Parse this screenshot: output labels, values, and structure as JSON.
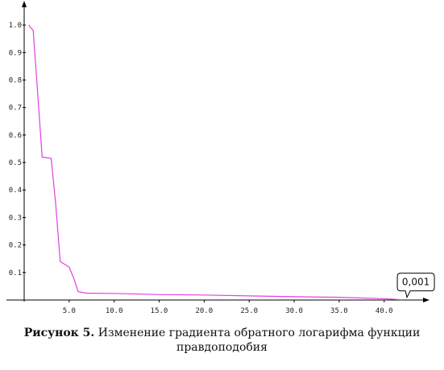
{
  "chart_data": {
    "type": "line",
    "x_tick_labels": [
      "5.0",
      "10.0",
      "15.0",
      "20.0",
      "25.0",
      "30.0",
      "35.0",
      "40.0"
    ],
    "y_tick_labels": [
      "0.1",
      "0.2",
      "0.3",
      "0.4",
      "0.5",
      "0.6",
      "0.7",
      "0.8",
      "0.9",
      "1.0"
    ],
    "xlim": [
      0,
      44.5
    ],
    "ylim": [
      0,
      1.05
    ],
    "series": [
      {
        "color": "#e040e0",
        "x": [
          0.5,
          1.0,
          1.5,
          2.0,
          3.0,
          3.5,
          4.0,
          4.5,
          5.0,
          5.5,
          6.0,
          7.0,
          10.0,
          15.0,
          20.0,
          25.0,
          30.0,
          35.0,
          40.0,
          42.0
        ],
        "y": [
          1.0,
          0.98,
          0.75,
          0.52,
          0.515,
          0.35,
          0.14,
          0.13,
          0.12,
          0.08,
          0.03,
          0.025,
          0.024,
          0.02,
          0.018,
          0.015,
          0.012,
          0.01,
          0.005,
          0.001
        ]
      }
    ],
    "annotation": {
      "text": "0,001",
      "x": 42.0,
      "y": 0.001
    },
    "grid": false,
    "axis_color": "#000000"
  },
  "caption": {
    "label": "Рисунок 5.",
    "text": " Изменение градиента обратного логарифма функции правдоподобия"
  }
}
